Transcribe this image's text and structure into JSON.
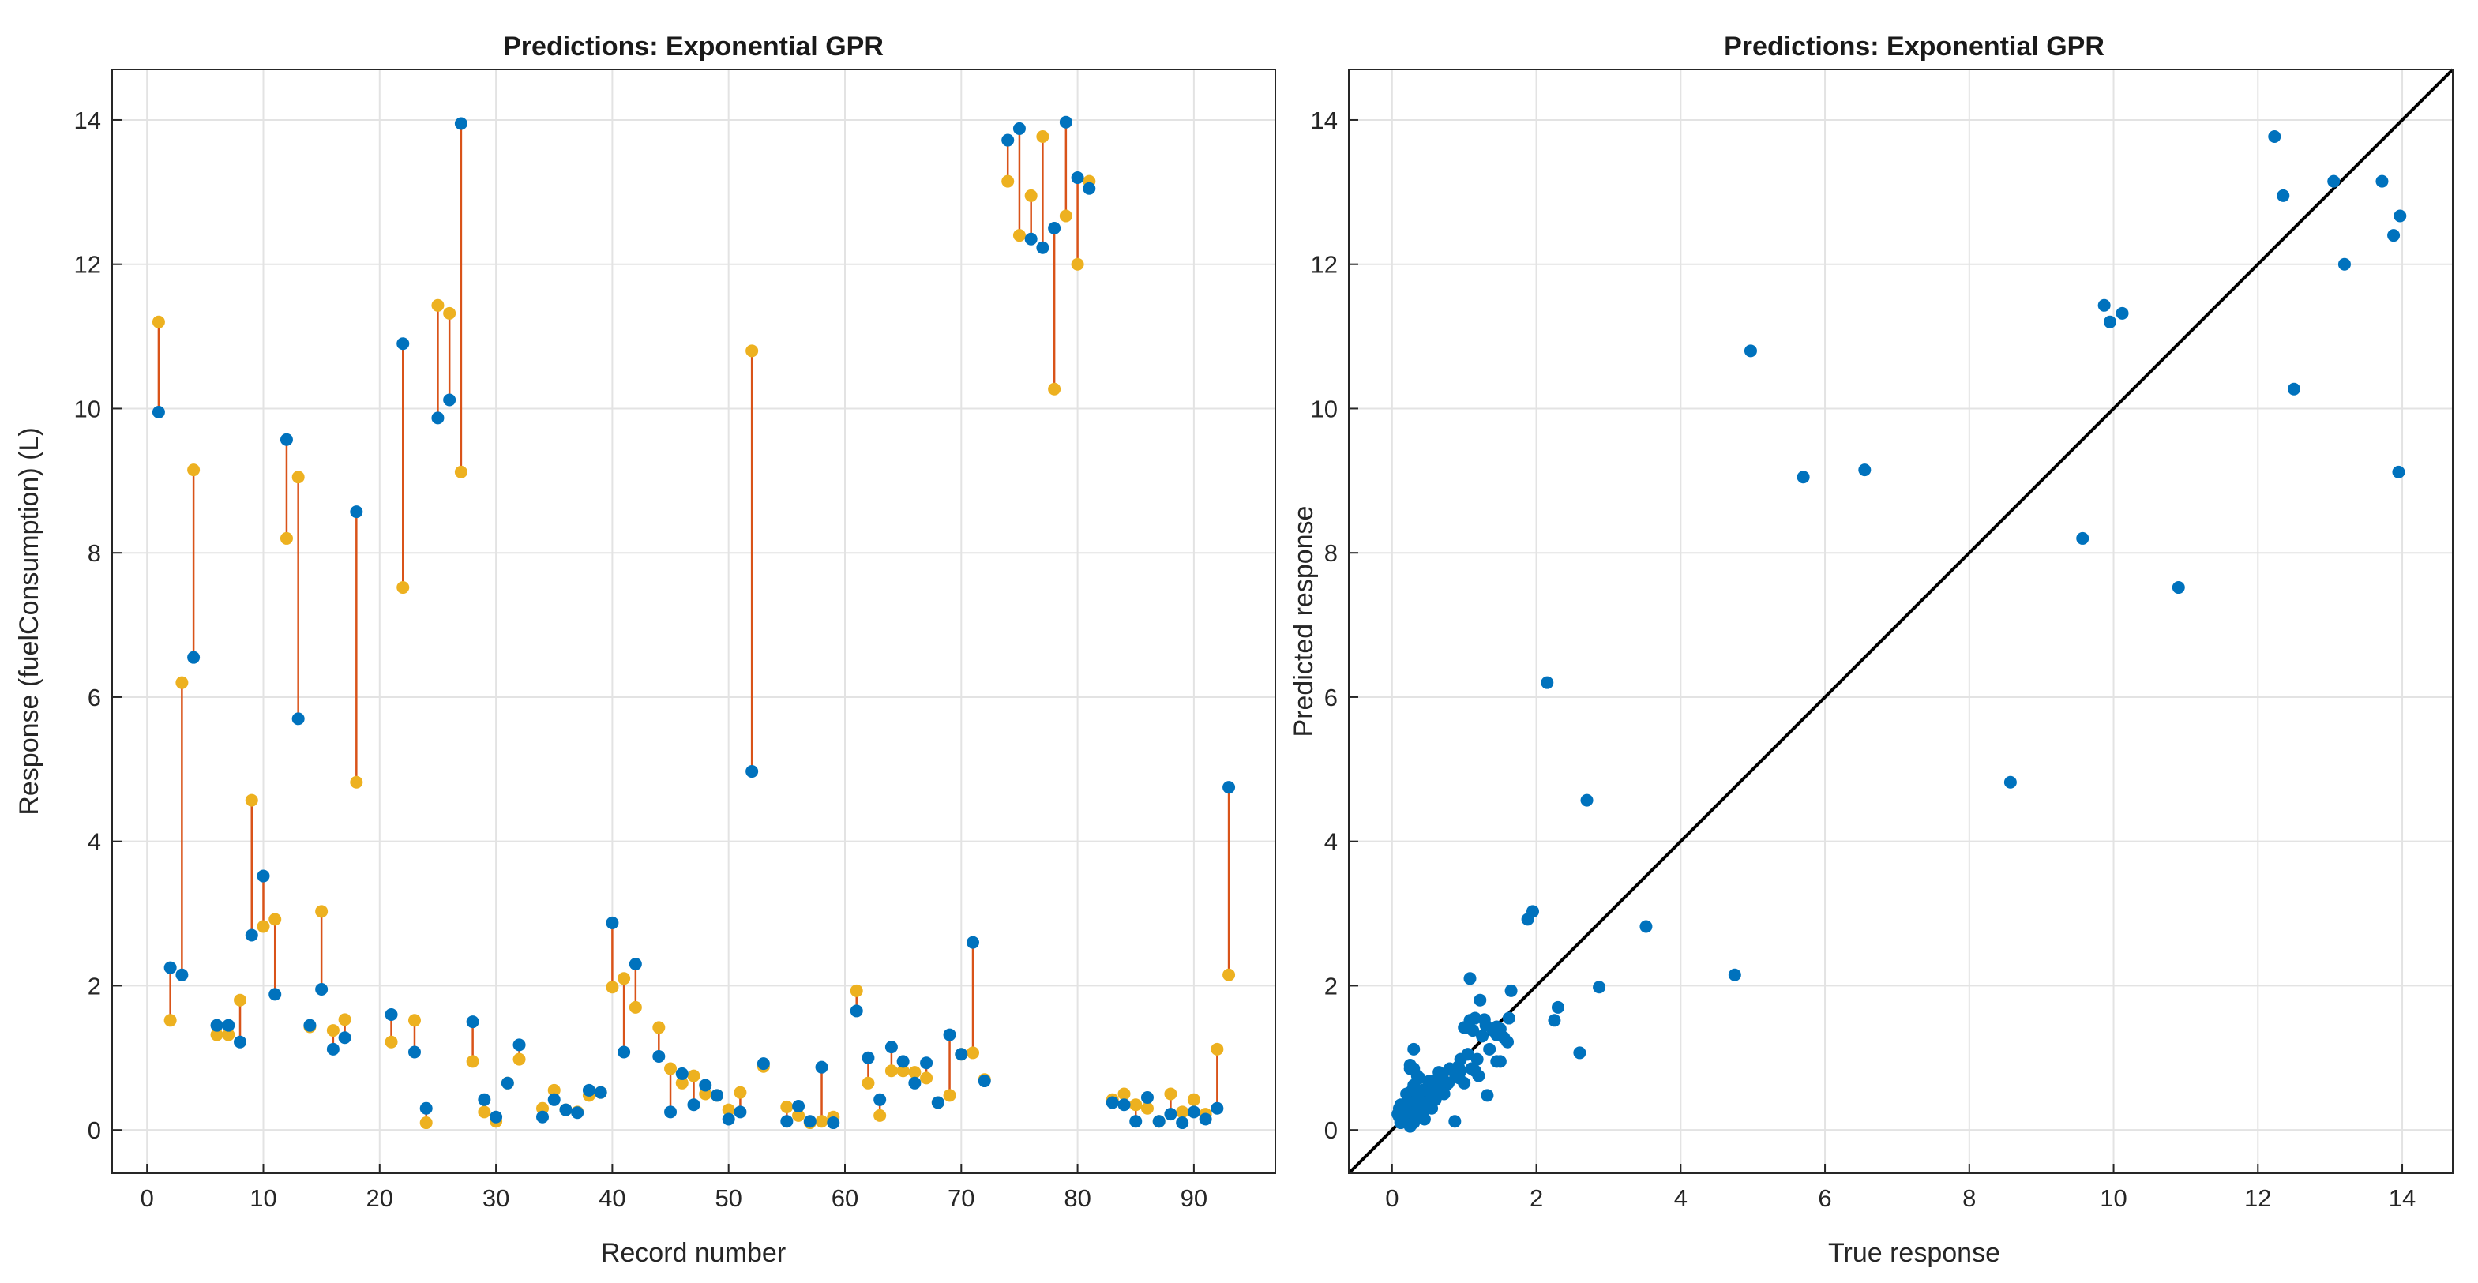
{
  "colors": {
    "true_marker": "#0072BD",
    "pred_marker": "#EDB120",
    "error_line": "#D95319",
    "ideal_line": "#000000"
  },
  "chart_data": [
    {
      "type": "scatter",
      "title": "Predictions: Exponential GPR",
      "xlabel": "Record number",
      "ylabel": "Response (fuelConsumption) (L)",
      "xlim": [
        -3,
        97
      ],
      "ylim": [
        -0.6,
        14.7
      ],
      "xticks": [
        0,
        10,
        20,
        30,
        40,
        50,
        60,
        70,
        80,
        90
      ],
      "yticks": [
        0,
        2,
        4,
        6,
        8,
        10,
        12,
        14
      ],
      "grid": true,
      "series": [
        {
          "x": [
            1,
            2,
            3,
            4,
            6,
            7,
            8,
            9,
            10,
            11,
            12,
            13,
            14,
            15,
            16,
            17,
            18,
            21,
            22,
            23,
            24,
            25,
            26,
            27,
            28,
            29,
            30,
            31,
            32,
            34,
            35,
            36,
            37,
            38,
            39,
            40,
            41,
            42,
            44,
            45,
            46,
            47,
            48,
            49,
            50,
            51,
            52,
            53,
            55,
            56,
            57,
            58,
            59,
            61,
            62,
            63,
            64,
            65,
            66,
            67,
            68,
            69,
            70,
            71,
            72,
            74,
            75,
            76,
            77,
            78,
            79,
            80,
            81,
            83,
            84,
            85,
            86,
            87,
            88,
            89,
            90,
            91,
            92,
            93
          ],
          "true": [
            9.95,
            2.25,
            2.15,
            6.55,
            1.45,
            1.45,
            1.22,
            2.7,
            3.52,
            1.88,
            9.57,
            5.7,
            1.45,
            1.95,
            1.12,
            1.28,
            8.57,
            1.6,
            10.9,
            1.08,
            0.3,
            9.87,
            10.12,
            13.95,
            1.5,
            0.42,
            0.18,
            0.65,
            1.18,
            0.18,
            0.42,
            0.28,
            0.24,
            0.55,
            0.52,
            2.87,
            1.08,
            2.3,
            1.02,
            0.25,
            0.78,
            0.35,
            0.62,
            0.48,
            0.15,
            0.25,
            4.97,
            0.92,
            0.12,
            0.33,
            0.12,
            0.87,
            0.1,
            1.65,
            1.0,
            0.42,
            1.15,
            0.95,
            0.65,
            0.93,
            0.38,
            1.32,
            1.05,
            2.6,
            0.68,
            13.72,
            13.88,
            12.35,
            12.23,
            12.5,
            13.97,
            13.2,
            13.05,
            0.38,
            0.35,
            0.12,
            0.45,
            0.12,
            0.22,
            0.1,
            0.25,
            0.15,
            0.3,
            4.75
          ],
          "predicted": [
            11.2,
            1.52,
            6.2,
            9.15,
            1.32,
            1.32,
            1.8,
            4.57,
            2.82,
            2.92,
            8.2,
            9.05,
            1.43,
            3.03,
            1.38,
            1.53,
            4.82,
            1.22,
            7.52,
            1.52,
            0.1,
            11.43,
            11.32,
            9.12,
            0.95,
            0.25,
            0.12,
            0.65,
            0.98,
            0.3,
            0.55,
            0.28,
            0.25,
            0.48,
            0.52,
            1.98,
            2.1,
            1.7,
            1.42,
            0.85,
            0.65,
            0.75,
            0.5,
            0.48,
            0.28,
            0.52,
            10.8,
            0.88,
            0.32,
            0.2,
            0.1,
            0.12,
            0.18,
            1.93,
            0.65,
            0.2,
            0.82,
            0.82,
            0.8,
            0.72,
            0.38,
            0.48,
            1.05,
            1.07,
            0.7,
            13.15,
            12.4,
            12.95,
            13.77,
            10.27,
            12.67,
            12.0,
            13.15,
            0.42,
            0.5,
            0.35,
            0.3,
            0.12,
            0.5,
            0.25,
            0.42,
            0.22,
            1.12,
            2.15
          ]
        }
      ]
    },
    {
      "type": "scatter",
      "title": "Predictions: Exponential GPR",
      "xlabel": "True response",
      "ylabel": "Predicted response",
      "xlim": [
        -0.6,
        14.7
      ],
      "ylim": [
        -0.6,
        14.7
      ],
      "xticks": [
        0,
        2,
        4,
        6,
        8,
        10,
        12,
        14
      ],
      "yticks": [
        0,
        2,
        4,
        6,
        8,
        10,
        12,
        14
      ],
      "grid": true,
      "reference_line": "y = x",
      "points_from": "series true/predicted of the first chart plus cluster near origin",
      "extra_points": [
        [
          0.08,
          0.22
        ],
        [
          0.12,
          0.1
        ],
        [
          0.15,
          0.35
        ],
        [
          0.18,
          0.12
        ],
        [
          0.2,
          0.5
        ],
        [
          0.22,
          0.28
        ],
        [
          0.25,
          0.05
        ],
        [
          0.28,
          0.4
        ],
        [
          0.3,
          0.62
        ],
        [
          0.32,
          0.18
        ],
        [
          0.35,
          0.3
        ],
        [
          0.38,
          0.72
        ],
        [
          0.4,
          0.45
        ],
        [
          0.42,
          0.22
        ],
        [
          0.45,
          0.55
        ],
        [
          0.48,
          0.35
        ],
        [
          0.5,
          0.6
        ],
        [
          0.55,
          0.5
        ],
        [
          0.6,
          0.68
        ],
        [
          0.65,
          0.55
        ],
        [
          0.7,
          0.72
        ],
        [
          0.75,
          0.62
        ],
        [
          0.8,
          0.85
        ],
        [
          0.88,
          0.75
        ],
        [
          0.95,
          0.98
        ],
        [
          1.0,
          1.42
        ],
        [
          1.05,
          1.05
        ],
        [
          1.1,
          0.85
        ],
        [
          1.15,
          1.55
        ],
        [
          1.2,
          0.75
        ],
        [
          1.25,
          1.3
        ],
        [
          1.3,
          1.45
        ],
        [
          1.35,
          1.12
        ],
        [
          1.4,
          1.38
        ],
        [
          1.45,
          0.95
        ],
        [
          1.5,
          1.4
        ],
        [
          1.55,
          1.28
        ],
        [
          1.62,
          1.55
        ],
        [
          0.55,
          0.3
        ],
        [
          0.3,
          0.85
        ],
        [
          0.2,
          0.38
        ],
        [
          0.1,
          0.3
        ],
        [
          0.45,
          0.15
        ],
        [
          0.6,
          0.42
        ],
        [
          0.28,
          0.55
        ],
        [
          0.36,
          0.48
        ],
        [
          0.52,
          0.68
        ],
        [
          0.16,
          0.2
        ],
        [
          0.25,
          0.9
        ],
        [
          0.72,
          0.5
        ]
      ]
    }
  ]
}
